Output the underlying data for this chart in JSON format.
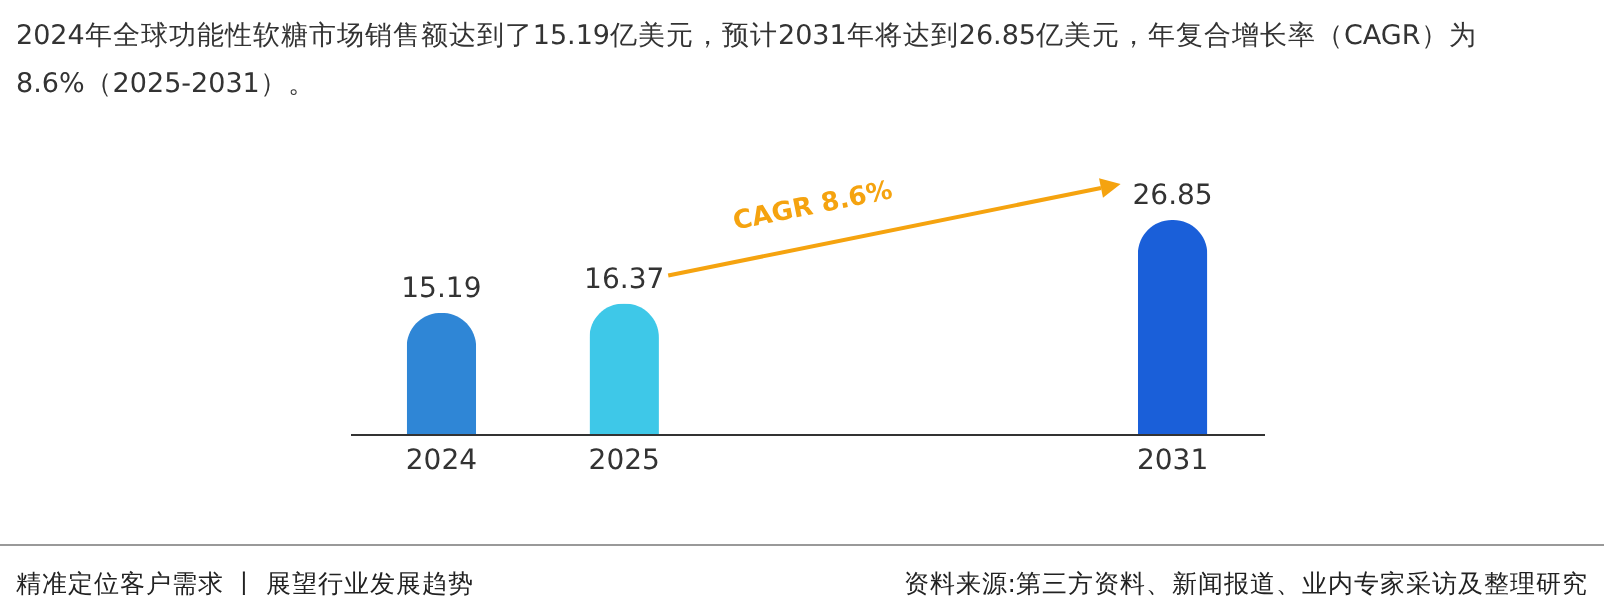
{
  "chart_data": {
    "type": "bar",
    "title": "2024年全球功能性软糖市场销售额达到了15.19亿美元，预计2031年将达到26.85亿美元，年复合增长率（CAGR）为8.6%（2025-2031）。",
    "categories": [
      "2024",
      "2025",
      null,
      null,
      "2031"
    ],
    "values": [
      15.19,
      16.37,
      null,
      null,
      26.85
    ],
    "colors": [
      "#2f86d6",
      "#3ec8e8",
      null,
      null,
      "#1a5fd9"
    ],
    "data_labels": true,
    "annotations": [
      "CAGR 8.6%",
      "精准定位客户需求 丨 展望行业发展趋势",
      "资料来源:第三方资料、新闻报道、业内专家采访及整理研究"
    ]
  }
}
